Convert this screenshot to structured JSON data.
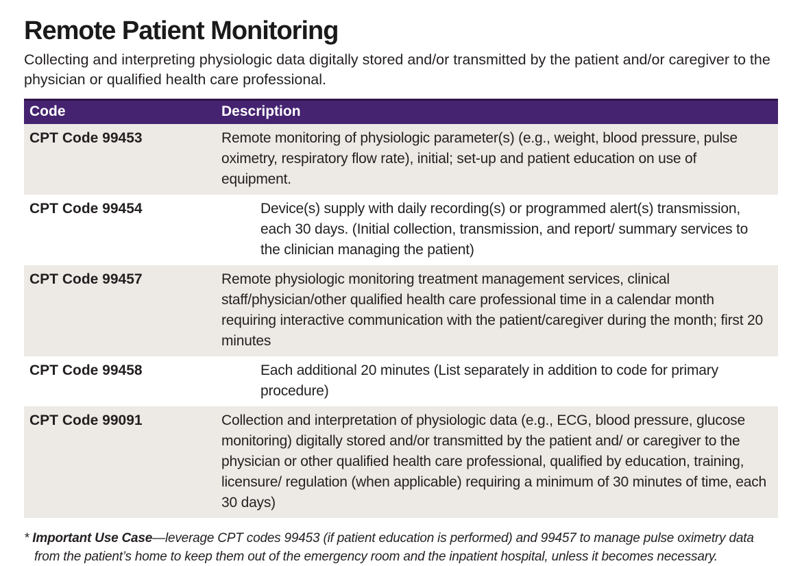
{
  "page": {
    "title": "Remote Patient Monitoring",
    "subtitle": "Collecting and interpreting physiologic data digitally stored and/or transmitted by the patient and/or caregiver to the physician or qualified health care professional."
  },
  "table": {
    "headers": {
      "code": "Code",
      "description": "Description"
    },
    "rows": [
      {
        "code": "CPT Code 99453",
        "description": "Remote monitoring of physiologic parameter(s) (e.g., weight, blood pressure, pulse oximetry, respiratory flow rate), initial; set-up and patient education on use of equipment."
      },
      {
        "code": "CPT Code 99454",
        "description": "Device(s) supply with daily recording(s) or programmed alert(s) transmission, each 30 days. (Initial collection, transmission, and report/ summary services to the clinician managing the patient)"
      },
      {
        "code": "CPT Code 99457",
        "description": "Remote physiologic monitoring treatment management services, clinical staff/physician/other qualified health care professional time in a calendar month requiring interactive communication with the patient/caregiver during the month; first 20 minutes"
      },
      {
        "code": "CPT Code 99458",
        "description": "Each additional 20 minutes (List separately in addition to code for primary procedure)"
      },
      {
        "code": "CPT Code 99091",
        "description": "Collection and interpretation of physiologic data (e.g., ECG, blood pressure, glucose monitoring) digitally stored and/or transmitted by the patient and/ or caregiver to the physician or other qualified health care professional, qualified by education, training, licensure/ regulation (when applicable) requiring a minimum of 30 minutes of time, each 30 days)"
      }
    ]
  },
  "footnote": {
    "marker": "*",
    "label": "Important Use Case",
    "text": "—leverage CPT codes 99453 (if patient education is performed) and 99457 to manage pulse oximetry data from the patient’s home to keep them out of the emergency room and the inpatient hospital, unless it becomes necessary."
  },
  "colors": {
    "header_bg": "#452370",
    "header_border_top": "#2e1549",
    "header_text": "#ffffff",
    "row_shaded_bg": "#edeae5",
    "row_plain_bg": "#ffffff",
    "body_text": "#231f20"
  }
}
